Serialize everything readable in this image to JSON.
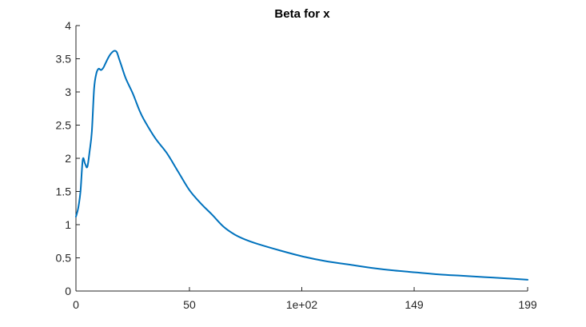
{
  "chart_data": {
    "type": "line",
    "title": "Beta for x",
    "xlabel": "",
    "ylabel": "",
    "xlim": [
      0,
      199
    ],
    "ylim": [
      0,
      4
    ],
    "x_ticks": [
      0,
      50,
      99.5,
      149,
      199
    ],
    "x_tick_labels": [
      "0",
      "50",
      "1e+02",
      "149",
      "199"
    ],
    "y_ticks": [
      0,
      0.5,
      1,
      1.5,
      2,
      2.5,
      3,
      3.5,
      4
    ],
    "y_tick_labels": [
      "0",
      "0.5",
      "1",
      "1.5",
      "2",
      "2.5",
      "3",
      "3.5",
      "4"
    ],
    "grid": false,
    "series": [
      {
        "color": "#0072BD",
        "x": [
          0,
          1,
          2,
          3,
          4,
          5,
          6,
          7,
          8,
          9,
          10,
          11,
          12,
          13,
          14,
          15,
          16,
          17,
          18,
          19,
          20,
          22,
          25,
          28,
          30,
          35,
          40,
          45,
          50,
          55,
          60,
          65,
          70,
          75,
          80,
          90,
          100,
          110,
          120,
          130,
          140,
          150,
          160,
          170,
          180,
          190,
          199
        ],
        "y": [
          1.12,
          1.25,
          1.5,
          1.98,
          1.92,
          1.87,
          2.1,
          2.4,
          3.05,
          3.28,
          3.35,
          3.33,
          3.36,
          3.43,
          3.5,
          3.56,
          3.6,
          3.62,
          3.6,
          3.5,
          3.4,
          3.2,
          2.98,
          2.72,
          2.58,
          2.3,
          2.08,
          1.8,
          1.52,
          1.32,
          1.15,
          0.97,
          0.85,
          0.77,
          0.71,
          0.61,
          0.52,
          0.45,
          0.4,
          0.35,
          0.31,
          0.28,
          0.25,
          0.23,
          0.21,
          0.19,
          0.17
        ]
      }
    ]
  }
}
